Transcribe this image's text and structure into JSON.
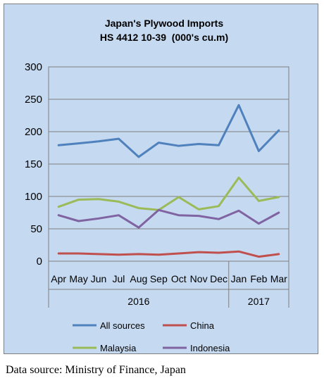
{
  "source_note": "Data source: Ministry of Finance, Japan",
  "chart_data": {
    "type": "line",
    "title": "Japan's Plywood Imports",
    "subtitle": "HS 4412 10-39  (000's cu.m)",
    "categories": [
      "Apr",
      "May",
      "Jun",
      "Jul",
      "Aug",
      "Sep",
      "Oct",
      "Nov",
      "Dec",
      "Jan",
      "Feb",
      "Mar"
    ],
    "year_groups": [
      {
        "label": "2016",
        "count": 9
      },
      {
        "label": "2017",
        "count": 3
      }
    ],
    "ylim": [
      0,
      300
    ],
    "yticks": [
      0,
      50,
      100,
      150,
      200,
      250,
      300
    ],
    "grid": true,
    "legend_position": "bottom",
    "series": [
      {
        "name": "All sources",
        "color": "#4f81bd",
        "values": [
          179,
          182,
          185,
          189,
          161,
          183,
          178,
          181,
          179,
          241,
          170,
          202
        ]
      },
      {
        "name": "China",
        "color": "#c0504d",
        "values": [
          12,
          12,
          11,
          10,
          11,
          10,
          12,
          14,
          13,
          15,
          7,
          11
        ]
      },
      {
        "name": "Malaysia",
        "color": "#9bbb59",
        "values": [
          84,
          95,
          96,
          92,
          82,
          79,
          99,
          80,
          85,
          129,
          93,
          99
        ]
      },
      {
        "name": "Indonesia",
        "color": "#8064a2",
        "values": [
          71,
          62,
          66,
          71,
          52,
          79,
          71,
          70,
          65,
          78,
          58,
          75
        ]
      }
    ]
  }
}
